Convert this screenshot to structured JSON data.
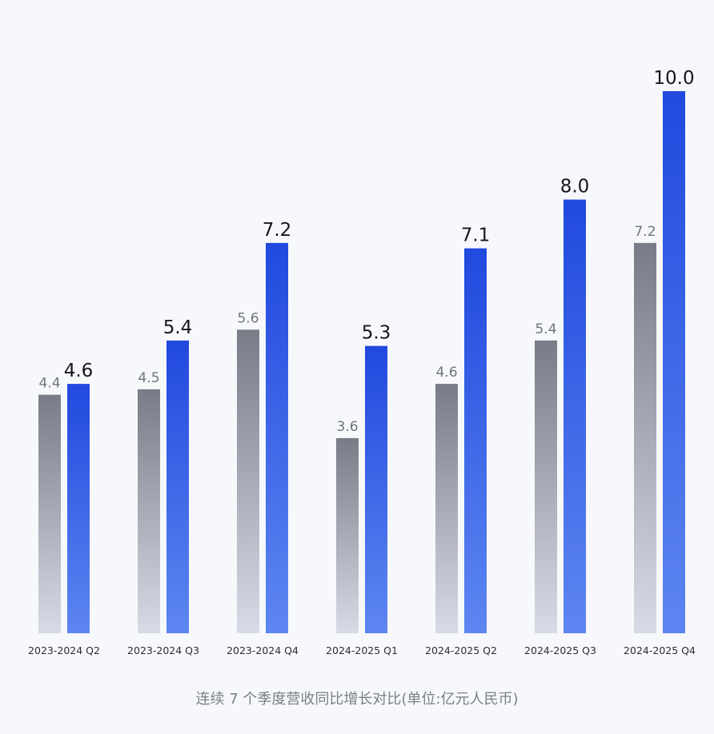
{
  "chart_data": {
    "type": "bar",
    "caption": "连续 7 个季度营收同比增长对比(单位:亿元人民币)",
    "categories": [
      "2023-2024 Q2",
      "2023-2024 Q3",
      "2023-2024 Q4",
      "2024-2025 Q1",
      "2024-2025 Q2",
      "2024-2025 Q3",
      "2024-2025 Q4"
    ],
    "series": [
      {
        "values": [
          4.4,
          4.5,
          5.6,
          3.6,
          4.6,
          5.4,
          7.2
        ],
        "color_top": "#777c87",
        "color_bottom": "#d6dbe6"
      },
      {
        "values": [
          4.6,
          5.4,
          7.2,
          5.3,
          7.1,
          8.0,
          10.0
        ],
        "color_top": "#2149de",
        "color_bottom": "#5d86f1"
      }
    ],
    "value_labels": [
      [
        "4.4",
        "4.5",
        "5.6",
        "3.6",
        "4.6",
        "5.4",
        "7.2"
      ],
      [
        "4.6",
        "5.4",
        "7.2",
        "5.3",
        "7.1",
        "8.0",
        "10.0"
      ]
    ],
    "ylim": [
      0,
      10
    ],
    "grid": false
  }
}
